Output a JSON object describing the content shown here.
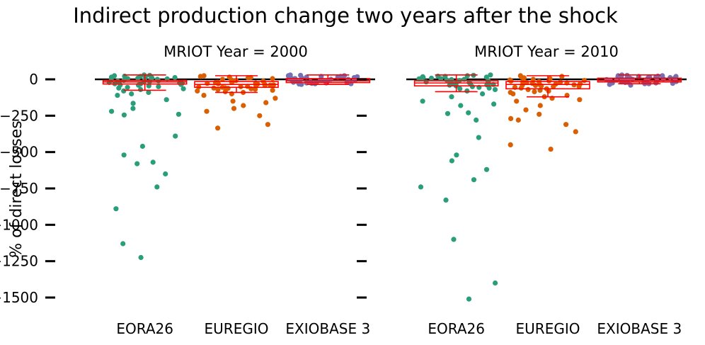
{
  "title": "Indirect production change two years after the shock",
  "colors": {
    "EORA26": "#2a9d7a",
    "EUREGIO": "#d95f02",
    "EXIOBASE 3": "#7570b3",
    "box": "#ff0000",
    "zero_line": "#000000"
  },
  "chart_data": [
    {
      "type": "box+strip",
      "title": "MRIOT Year = 2000",
      "ylabel": "% of direct losses",
      "yticks": [
        0,
        -250,
        -500,
        -750,
        -1000,
        -1250,
        -1500
      ],
      "ytick_labels": [
        "0",
        "−250",
        "−500",
        "−750",
        "−1000",
        "−1250",
        "−1500"
      ],
      "ylim": [
        -1600,
        80
      ],
      "grid": false,
      "categories": [
        "EORA26",
        "EUREGIO",
        "EXIOBASE 3"
      ],
      "series": [
        {
          "category": "EORA26",
          "box": {
            "whisker_low": -75,
            "q1": -32,
            "median": -18,
            "q3": -8,
            "whisker_high": 30
          },
          "points": [
            30,
            28,
            25,
            22,
            20,
            18,
            15,
            12,
            10,
            8,
            5,
            3,
            0,
            -2,
            -5,
            -8,
            -10,
            -12,
            -15,
            -18,
            -20,
            -22,
            -25,
            -28,
            -30,
            -32,
            -35,
            -38,
            -40,
            -45,
            -50,
            -55,
            -60,
            -65,
            -70,
            -80,
            -90,
            -100,
            -110,
            -140,
            -165,
            -200,
            -220,
            -240,
            -245,
            -390,
            -460,
            -520,
            -570,
            -580,
            -650,
            -740,
            -890,
            -1130,
            -1225
          ]
        },
        {
          "category": "EUREGIO",
          "box": {
            "whisker_low": -90,
            "q1": -55,
            "median": -35,
            "q3": -15,
            "whisker_high": 25
          },
          "points": [
            25,
            20,
            15,
            12,
            10,
            5,
            0,
            -5,
            -8,
            -10,
            -12,
            -15,
            -18,
            -20,
            -22,
            -25,
            -28,
            -30,
            -32,
            -35,
            -38,
            -40,
            -42,
            -45,
            -48,
            -50,
            -52,
            -55,
            -58,
            -60,
            -62,
            -65,
            -68,
            -70,
            -75,
            -80,
            -85,
            -90,
            -100,
            -110,
            -130,
            -150,
            -160,
            -180,
            -200,
            -220,
            -250,
            -310,
            -335
          ]
        },
        {
          "category": "EXIOBASE 3",
          "box": {
            "whisker_low": -35,
            "q1": -22,
            "median": -10,
            "q3": 5,
            "whisker_high": 30
          },
          "points": [
            30,
            28,
            25,
            22,
            20,
            18,
            15,
            12,
            10,
            8,
            5,
            3,
            0,
            -2,
            -5,
            -8,
            -10,
            -12,
            -15,
            -18,
            -20,
            -22,
            -25,
            -28,
            -30,
            -32,
            -35,
            25,
            15,
            5,
            -5,
            -15,
            -25,
            20,
            10,
            0,
            -10,
            -20,
            -30
          ]
        }
      ]
    },
    {
      "type": "box+strip",
      "title": "MRIOT Year = 2010",
      "ylabel": "",
      "yticks": [
        0,
        -250,
        -500,
        -750,
        -1000,
        -1250,
        -1500
      ],
      "ytick_labels": [
        "",
        "",
        "",
        "",
        "",
        "",
        ""
      ],
      "ylim": [
        -1600,
        80
      ],
      "grid": false,
      "categories": [
        "EORA26",
        "EUREGIO",
        "EXIOBASE 3"
      ],
      "series": [
        {
          "category": "EORA26",
          "box": {
            "whisker_low": -85,
            "q1": -45,
            "median": -25,
            "q3": -10,
            "whisker_high": 30
          },
          "points": [
            30,
            28,
            25,
            22,
            20,
            18,
            15,
            12,
            10,
            8,
            5,
            3,
            0,
            -2,
            -5,
            -8,
            -10,
            -12,
            -15,
            -18,
            -20,
            -22,
            -25,
            -28,
            -30,
            -32,
            -35,
            -38,
            -40,
            -45,
            -50,
            -55,
            -60,
            -65,
            -70,
            -80,
            -100,
            -120,
            -150,
            -170,
            -180,
            -230,
            -235,
            -280,
            -400,
            -520,
            -560,
            -620,
            -690,
            -740,
            -830,
            -1100,
            -1400,
            -1510
          ]
        },
        {
          "category": "EUREGIO",
          "box": {
            "whisker_low": -120,
            "q1": -65,
            "median": -35,
            "q3": -15,
            "whisker_high": 25
          },
          "points": [
            25,
            20,
            15,
            10,
            5,
            0,
            -5,
            -8,
            -10,
            -12,
            -15,
            -18,
            -20,
            -22,
            -25,
            -28,
            -30,
            -32,
            -35,
            -38,
            -40,
            -42,
            -45,
            -48,
            -50,
            -55,
            -60,
            -65,
            -70,
            -75,
            -80,
            -85,
            -90,
            -100,
            -110,
            -120,
            -130,
            -140,
            -150,
            -180,
            -210,
            -240,
            -270,
            -280,
            -310,
            -360,
            -450,
            -480
          ]
        },
        {
          "category": "EXIOBASE 3",
          "box": {
            "whisker_low": -30,
            "q1": -18,
            "median": -8,
            "q3": 8,
            "whisker_high": 30
          },
          "points": [
            30,
            28,
            25,
            22,
            20,
            18,
            15,
            12,
            10,
            8,
            5,
            3,
            0,
            -2,
            -5,
            -8,
            -10,
            -12,
            -15,
            -18,
            -20,
            -22,
            -25,
            -28,
            -30,
            25,
            15,
            5,
            -5,
            -15,
            -25,
            20,
            10,
            0,
            -10,
            -20,
            -30,
            -35,
            -40
          ]
        }
      ]
    }
  ]
}
